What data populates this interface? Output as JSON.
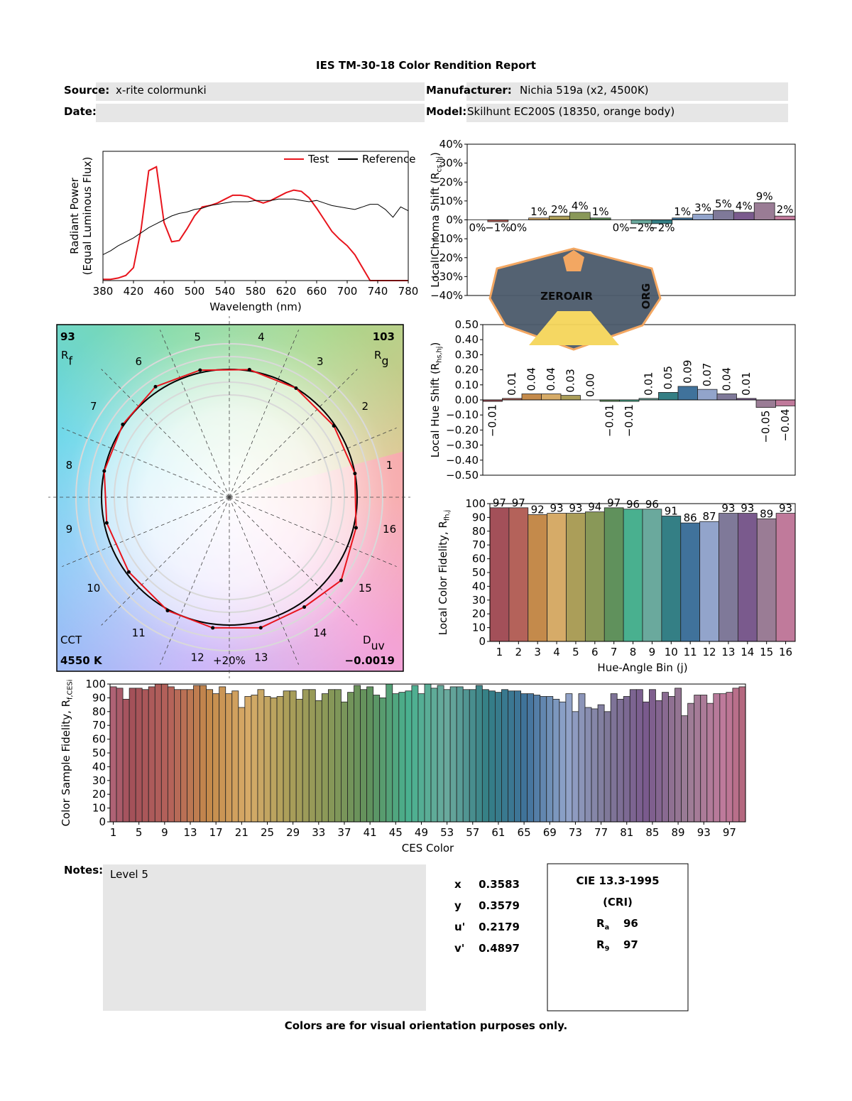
{
  "header": {
    "title": "IES TM-30-18 Color Rendition Report",
    "fields": [
      {
        "label": "Source:",
        "value": "x-rite colormunki"
      },
      {
        "label": "Manufacturer:",
        "value": "Nichia 519a (x2, 4500K)"
      },
      {
        "label": "Date:"
      },
      {
        "label": "Model:",
        "value": "Skilhunt EC200S (18350, orange body)"
      }
    ]
  },
  "hue_bin_colors": [
    "#a35059",
    "#b4625a",
    "#c48a4b",
    "#d6ab68",
    "#ab9e59",
    "#899858",
    "#60915c",
    "#49b08f",
    "#6aa99d",
    "#347f85",
    "#40729b",
    "#92a4cb",
    "#7f7999",
    "#7a5a8d",
    "#9a7c95",
    "#c07a9b"
  ],
  "chart_data": [
    {
      "type": "line",
      "x": [
        380,
        390,
        400,
        410,
        420,
        430,
        440,
        450,
        460,
        470,
        480,
        490,
        500,
        510,
        520,
        530,
        540,
        550,
        560,
        570,
        580,
        590,
        600,
        610,
        620,
        630,
        640,
        650,
        660,
        670,
        680,
        690,
        700,
        710,
        720,
        730,
        740,
        750,
        760,
        770,
        780
      ],
      "series": [
        {
          "name": "Test",
          "color": "#e8141c",
          "values": [
            0.01,
            0.01,
            0.02,
            0.04,
            0.1,
            0.4,
            0.85,
            0.88,
            0.45,
            0.3,
            0.31,
            0.4,
            0.5,
            0.57,
            0.58,
            0.6,
            0.63,
            0.66,
            0.66,
            0.65,
            0.62,
            0.6,
            0.62,
            0.65,
            0.68,
            0.7,
            0.69,
            0.64,
            0.56,
            0.47,
            0.38,
            0.32,
            0.27,
            0.2,
            0.1,
            0,
            0,
            0,
            0,
            0,
            0
          ]
        },
        {
          "name": "Reference",
          "color": "#000000",
          "values": [
            0.2,
            0.23,
            0.27,
            0.3,
            0.33,
            0.37,
            0.41,
            0.44,
            0.47,
            0.5,
            0.52,
            0.53,
            0.55,
            0.56,
            0.58,
            0.59,
            0.6,
            0.61,
            0.61,
            0.61,
            0.62,
            0.62,
            0.62,
            0.63,
            0.63,
            0.63,
            0.62,
            0.61,
            0.62,
            0.6,
            0.58,
            0.57,
            0.56,
            0.55,
            0.57,
            0.59,
            0.59,
            0.55,
            0.49,
            0.57,
            0.54
          ]
        }
      ],
      "xlim": [
        380,
        780
      ],
      "xticks": [
        380,
        420,
        460,
        500,
        540,
        580,
        620,
        660,
        700,
        740,
        780
      ],
      "ylim": [
        0,
        1
      ],
      "xlabel": "Wavelength (nm)",
      "ylabel": {
        "text": "Radiant Power"
      },
      "ylabel_note": "(Equal Luminous Flux)",
      "legend": "upper right"
    },
    {
      "type": "vector",
      "bins": [
        1,
        2,
        3,
        4,
        5,
        6,
        7,
        8,
        9,
        10,
        11,
        12,
        13,
        14,
        15,
        16
      ],
      "rf": {
        "value": 93,
        "label": "R",
        "sub": "f"
      },
      "rg": {
        "value": 103,
        "label": "R",
        "sub": "g"
      },
      "cct": {
        "label": "CCT",
        "value": 4550,
        "value_label": "4550 K"
      },
      "duv": {
        "label": "D",
        "sub": "uv",
        "value": -0.0019,
        "value_label": "−0.0019"
      },
      "ring_label": "+20%"
    },
    {
      "type": "bar",
      "color_by": "hue_bin",
      "values": [
        0,
        -1,
        0,
        1,
        2,
        4,
        1,
        0,
        -2,
        -2,
        1,
        3,
        5,
        4,
        9,
        2
      ],
      "value_labels": [
        "0%",
        "−1%",
        "0%",
        "1%",
        "2%",
        "4%",
        "1%",
        "0%",
        "−2%",
        "−2%",
        "1%",
        "3%",
        "5%",
        "4%",
        "9%",
        "2%"
      ],
      "ylim": [
        -40,
        40
      ],
      "yticks": [
        {
          "value": -40,
          "label": "−40%"
        },
        {
          "value": -30,
          "label": "−30%"
        },
        {
          "value": -20,
          "label": "−20%"
        },
        {
          "value": -10,
          "label": "−10%"
        },
        {
          "value": 0,
          "label": "0%"
        },
        {
          "value": 10,
          "label": "10%"
        },
        {
          "value": 20,
          "label": "20%"
        },
        {
          "value": 30,
          "label": "30%"
        },
        {
          "value": 40,
          "label": "40%"
        }
      ],
      "ylabel": {
        "text": "Local Chroma Shift (R",
        "sub": "cs,hj",
        "end": ")"
      }
    },
    {
      "type": "bar",
      "color_by": "hue_bin",
      "rotated_labels": true,
      "values": [
        -0.01,
        0.01,
        0.04,
        0.04,
        0.03,
        0,
        -0.01,
        -0.01,
        0.01,
        0.05,
        0.09,
        0.07,
        0.04,
        0.01,
        -0.05,
        -0.04
      ],
      "value_labels": [
        "−0.01",
        "0.01",
        "0.04",
        "0.04",
        "0.03",
        "0.00",
        "−0.01",
        "−0.01",
        "0.01",
        "0.05",
        "0.09",
        "0.07",
        "0.04",
        "0.01",
        "−0.05",
        "−0.04"
      ],
      "ylim": [
        -0.5,
        0.5
      ],
      "yticks": [
        {
          "value": -0.5,
          "label": "−0.50"
        },
        {
          "value": -0.4,
          "label": "−0.40"
        },
        {
          "value": -0.3,
          "label": "−0.30"
        },
        {
          "value": -0.2,
          "label": "−0.20"
        },
        {
          "value": -0.1,
          "label": "−0.10"
        },
        {
          "value": 0,
          "label": "0.00"
        },
        {
          "value": 0.1,
          "label": "0.10"
        },
        {
          "value": 0.2,
          "label": "0.20"
        },
        {
          "value": 0.3,
          "label": "0.30"
        },
        {
          "value": 0.4,
          "label": "0.40"
        },
        {
          "value": 0.5,
          "label": "0.50"
        }
      ],
      "ylabel": {
        "text": "Local Hue Shift (R",
        "sub": "hs,hj",
        "end": ")"
      }
    },
    {
      "type": "bar",
      "color_by": "hue_bin",
      "categories": [
        1,
        2,
        3,
        4,
        5,
        6,
        7,
        8,
        9,
        10,
        11,
        12,
        13,
        14,
        15,
        16
      ],
      "values": [
        97,
        97,
        92,
        93,
        93,
        94,
        97,
        96,
        96,
        91,
        86,
        87,
        93,
        93,
        89,
        93
      ],
      "ylim": [
        0,
        100
      ],
      "yticks": [
        0,
        10,
        20,
        30,
        40,
        50,
        60,
        70,
        80,
        90,
        100
      ],
      "xlabel": "Hue-Angle Bin (j)",
      "ylabel": {
        "text": "Local Color Fidelity, R",
        "sub": "fh,j"
      }
    },
    {
      "type": "bar",
      "color_by": "hue_gradient",
      "categories": [
        1,
        null,
        null,
        null,
        5,
        null,
        null,
        null,
        9,
        null,
        null,
        null,
        13,
        null,
        null,
        null,
        17,
        null,
        null,
        null,
        21,
        null,
        null,
        null,
        25,
        null,
        null,
        null,
        29,
        null,
        null,
        null,
        33,
        null,
        null,
        null,
        37,
        null,
        null,
        null,
        41,
        null,
        null,
        null,
        45,
        null,
        null,
        null,
        49,
        null,
        null,
        null,
        53,
        null,
        null,
        null,
        57,
        null,
        null,
        null,
        61,
        null,
        null,
        null,
        65,
        null,
        null,
        null,
        69,
        null,
        null,
        null,
        73,
        null,
        null,
        null,
        77,
        null,
        null,
        null,
        81,
        null,
        null,
        null,
        85,
        null,
        null,
        null,
        89,
        null,
        null,
        null,
        93,
        null,
        null,
        null,
        97,
        null,
        null
      ],
      "values": [
        98,
        97,
        89,
        97,
        97,
        96,
        98,
        100,
        100,
        98,
        96,
        96,
        96,
        99,
        99,
        96,
        93,
        98,
        93,
        95,
        83,
        91,
        92,
        96,
        91,
        90,
        91,
        95,
        95,
        89,
        96,
        96,
        88,
        93,
        96,
        96,
        87,
        94,
        99,
        96,
        98,
        92,
        90,
        100,
        93,
        94,
        95,
        99,
        93,
        100,
        97,
        99,
        96,
        98,
        98,
        96,
        96,
        99,
        96,
        95,
        94,
        96,
        95,
        95,
        93,
        93,
        92,
        91,
        91,
        89,
        87,
        93,
        80,
        93,
        83,
        82,
        85,
        80,
        93,
        89,
        91,
        96,
        96,
        87,
        96,
        88,
        94,
        91,
        97,
        77,
        86,
        92,
        92,
        86,
        93,
        93,
        94,
        97,
        98
      ],
      "ylim": [
        0,
        100
      ],
      "yticks": [
        0,
        10,
        20,
        30,
        40,
        50,
        60,
        70,
        80,
        90,
        100
      ],
      "xlabel": "CES Color",
      "ylabel": {
        "text": "Color Sample Fidelity, R",
        "sub": "f,CESi"
      }
    }
  ],
  "watermark": {
    "text": "ZEROAIR",
    "sub": "ORG"
  },
  "notes": {
    "label": "Notes:",
    "text": "Level 5"
  },
  "chromaticity": [
    {
      "label": "x",
      "value": 0.3583
    },
    {
      "label": "y",
      "value": 0.3579
    },
    {
      "label": "u'",
      "value": 0.2179
    },
    {
      "label": "v'",
      "value": 0.4897
    }
  ],
  "cri": {
    "title": "CIE 13.3-1995",
    "subtitle": "(CRI)",
    "items": [
      {
        "label": "R",
        "sub": "a",
        "value": 96
      },
      {
        "label": "R",
        "sub": "9",
        "value": 97
      }
    ]
  },
  "footer": "Colors are for visual orientation purposes only."
}
